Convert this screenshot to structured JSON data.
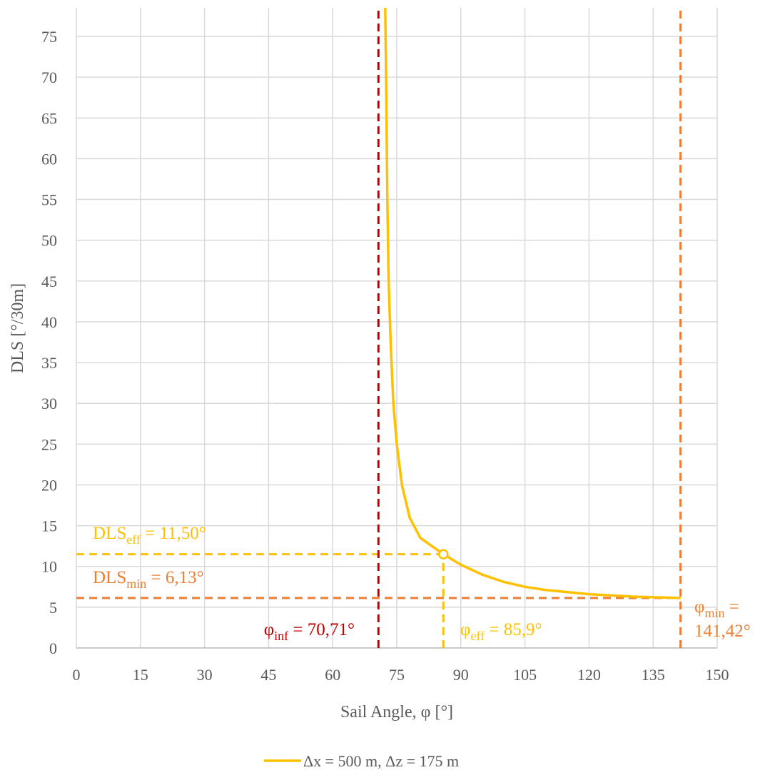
{
  "chart_data": {
    "type": "line",
    "x_label": "Sail Angle, φ [°]",
    "y_label": "DLS [°/30m]",
    "xlim": [
      0,
      150
    ],
    "ylim": [
      0,
      78.5
    ],
    "xticks": [
      0,
      15,
      30,
      45,
      60,
      75,
      90,
      105,
      120,
      135,
      150
    ],
    "yticks": [
      0,
      5,
      10,
      15,
      20,
      25,
      30,
      35,
      40,
      45,
      50,
      55,
      60,
      65,
      70,
      75
    ],
    "grid": true,
    "legend": "bottom",
    "x": [
      72.3,
      72.5,
      72.8,
      73.1,
      73.6,
      74.2,
      75,
      76.2,
      78,
      80.5,
      85.9,
      90,
      95,
      100,
      105,
      110,
      120,
      130,
      141.42
    ],
    "series": [
      {
        "name": "Δx = 500 m, Δz = 175 m",
        "color": "#FFC000",
        "values": [
          78.5,
          70,
          55,
          45,
          37,
          30,
          25,
          20,
          16,
          13.5,
          11.5,
          10.2,
          9,
          8.1,
          7.5,
          7.1,
          6.6,
          6.3,
          6.13
        ]
      }
    ],
    "marker": {
      "x": 85.9,
      "y": 11.5,
      "color": "#FFC000"
    },
    "reference_lines": [
      {
        "axis": "y",
        "value": 11.5,
        "from": 0,
        "to": 85.9,
        "color": "#FFC000"
      },
      {
        "axis": "y",
        "value": 6.13,
        "from": 0,
        "to": 141.42,
        "color": "#ED7D31"
      },
      {
        "axis": "x",
        "value": 70.71,
        "from": 0,
        "to": 78.5,
        "color": "#C00000"
      },
      {
        "axis": "x",
        "value": 85.9,
        "from": 0,
        "to": 11.5,
        "color": "#FFC000"
      },
      {
        "axis": "x",
        "value": 141.42,
        "from": 0,
        "to": 78.5,
        "color": "#ED7D31"
      }
    ],
    "annotations": [
      {
        "base": "DLS",
        "sub": "eff",
        "rest": " = 11,50°",
        "color": "#FFC000"
      },
      {
        "base": "DLS",
        "sub": "min",
        "rest": " = 6,13°",
        "color": "#ED7D31"
      },
      {
        "base": "φ",
        "sub": "inf",
        "rest": " = 70,71°",
        "color": "#C00000"
      },
      {
        "base": "φ",
        "sub": "eff",
        "rest": " = 85,9°",
        "color": "#FFC000"
      },
      {
        "base": "φ",
        "sub": "min",
        "rest": " =",
        "line2": "141,42°",
        "color": "#ED7D31"
      }
    ]
  }
}
